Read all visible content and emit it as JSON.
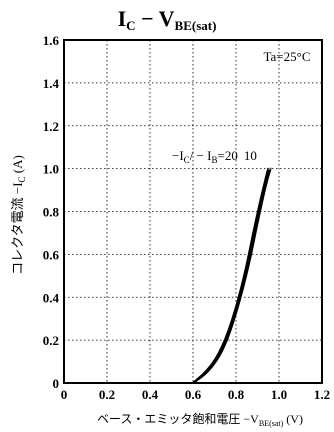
{
  "chart_data": {
    "type": "line",
    "title": {
      "main": "I",
      "sub1": "C",
      "mid": " − V",
      "sub2": "BE(sat)"
    },
    "xlabel": {
      "prefix": "ベース・エミッタ飽和電圧 −V",
      "sub": "BE(sat)",
      "unit": " (V)"
    },
    "ylabel": {
      "prefix": "コレクタ電流 −I",
      "sub": "C",
      "unit": " (A)"
    },
    "xlim": [
      0,
      1.2
    ],
    "ylim": [
      0,
      1.6
    ],
    "x_ticks": [
      "0",
      "0.2",
      "0.4",
      "0.6",
      "0.8",
      "1.0",
      "1.2"
    ],
    "y_ticks": [
      "0",
      "0.2",
      "0.4",
      "0.6",
      "0.8",
      "1.0",
      "1.2",
      "1.4",
      "1.6"
    ],
    "grid": true,
    "condition": "Ta=25°C",
    "annotation": {
      "left": "−I",
      "left_sub": "C",
      "mid": "/ − I",
      "mid_sub": "B",
      "values": "=20",
      "value2": "10"
    },
    "series": [
      {
        "values_x": [
          0.6,
          0.66,
          0.72,
          0.78,
          0.84,
          0.88,
          0.92,
          0.95
        ],
        "values_y": [
          0.0,
          0.05,
          0.13,
          0.28,
          0.5,
          0.7,
          0.88,
          1.0
        ]
      },
      {
        "values_x": [
          0.6,
          0.67,
          0.74,
          0.8,
          0.86,
          0.9,
          0.94,
          0.96
        ],
        "values_y": [
          0.0,
          0.05,
          0.15,
          0.32,
          0.55,
          0.75,
          0.93,
          1.0
        ]
      }
    ]
  }
}
